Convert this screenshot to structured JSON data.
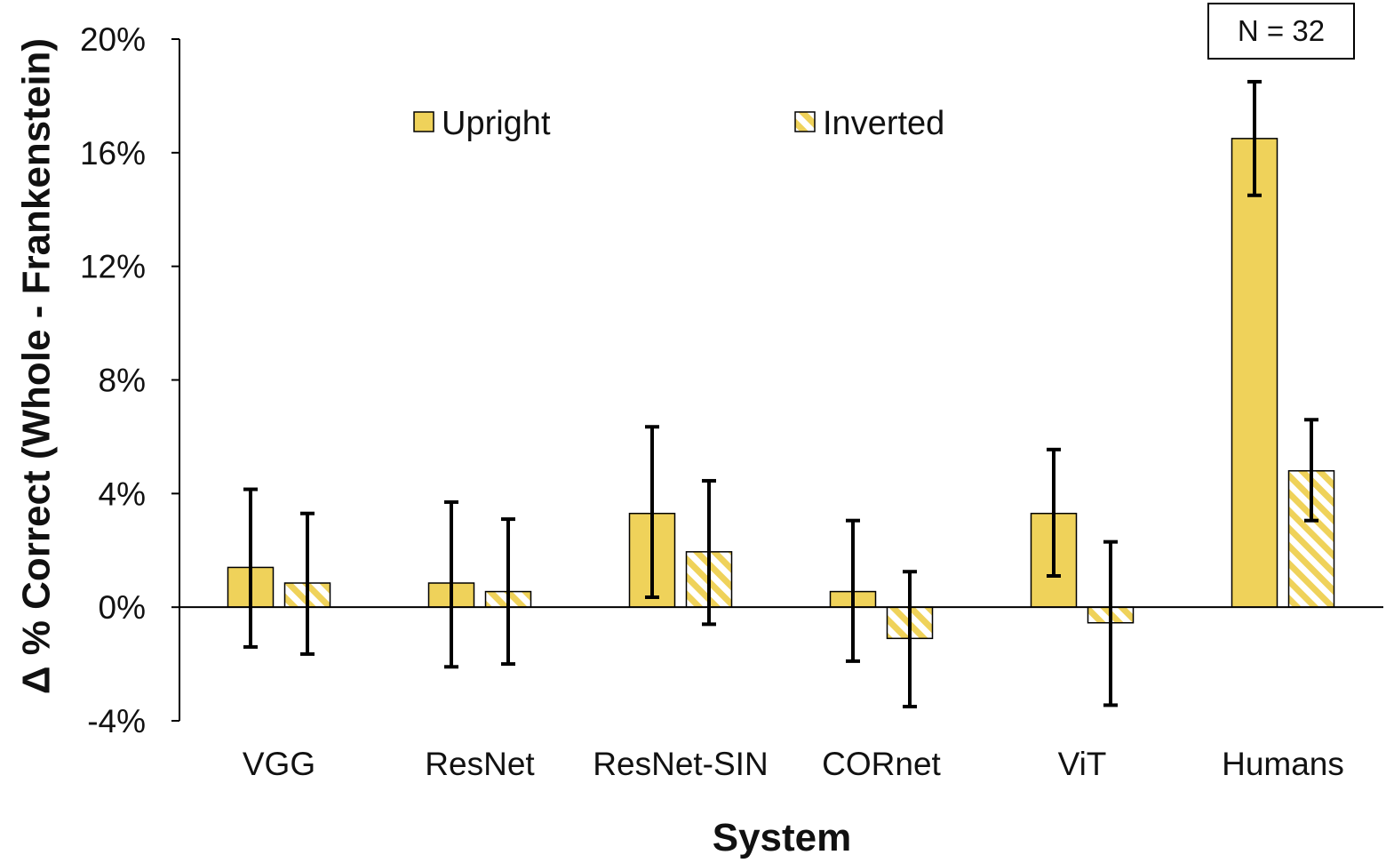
{
  "chart_data": {
    "type": "bar",
    "title": "",
    "xlabel": "System",
    "ylabel": "Δ % Correct (Whole - Frankenstein)",
    "ylim": [
      -4,
      20
    ],
    "yticks": [
      -4,
      0,
      4,
      8,
      12,
      16,
      20
    ],
    "ytick_labels": [
      "-4%",
      "0%",
      "4%",
      "8%",
      "12%",
      "16%",
      "20%"
    ],
    "categories": [
      "VGG",
      "ResNet",
      "ResNet-SIN",
      "CORnet",
      "ViT",
      "Humans"
    ],
    "series": [
      {
        "name": "Upright",
        "pattern": "solid",
        "values": [
          1.4,
          0.85,
          3.3,
          0.55,
          3.3,
          16.5
        ],
        "error_low": [
          -1.4,
          -2.1,
          0.35,
          -1.9,
          1.1,
          14.5
        ],
        "error_high": [
          4.15,
          3.7,
          6.35,
          3.05,
          5.55,
          18.5
        ]
      },
      {
        "name": "Inverted",
        "pattern": "hatched",
        "values": [
          0.85,
          0.55,
          1.95,
          -1.1,
          -0.55,
          4.8
        ],
        "error_low": [
          -1.65,
          -2.0,
          -0.6,
          -3.5,
          -3.45,
          3.05
        ],
        "error_high": [
          3.3,
          3.1,
          4.45,
          1.25,
          2.3,
          6.6
        ]
      }
    ],
    "legend": {
      "placement": "top",
      "entries": [
        "Upright",
        "Inverted"
      ]
    },
    "annotation": "N = 32",
    "grid": false,
    "colors": {
      "bar_fill": "#efd25a",
      "hatch_background": "#ffffff",
      "outline": "#000000"
    }
  }
}
